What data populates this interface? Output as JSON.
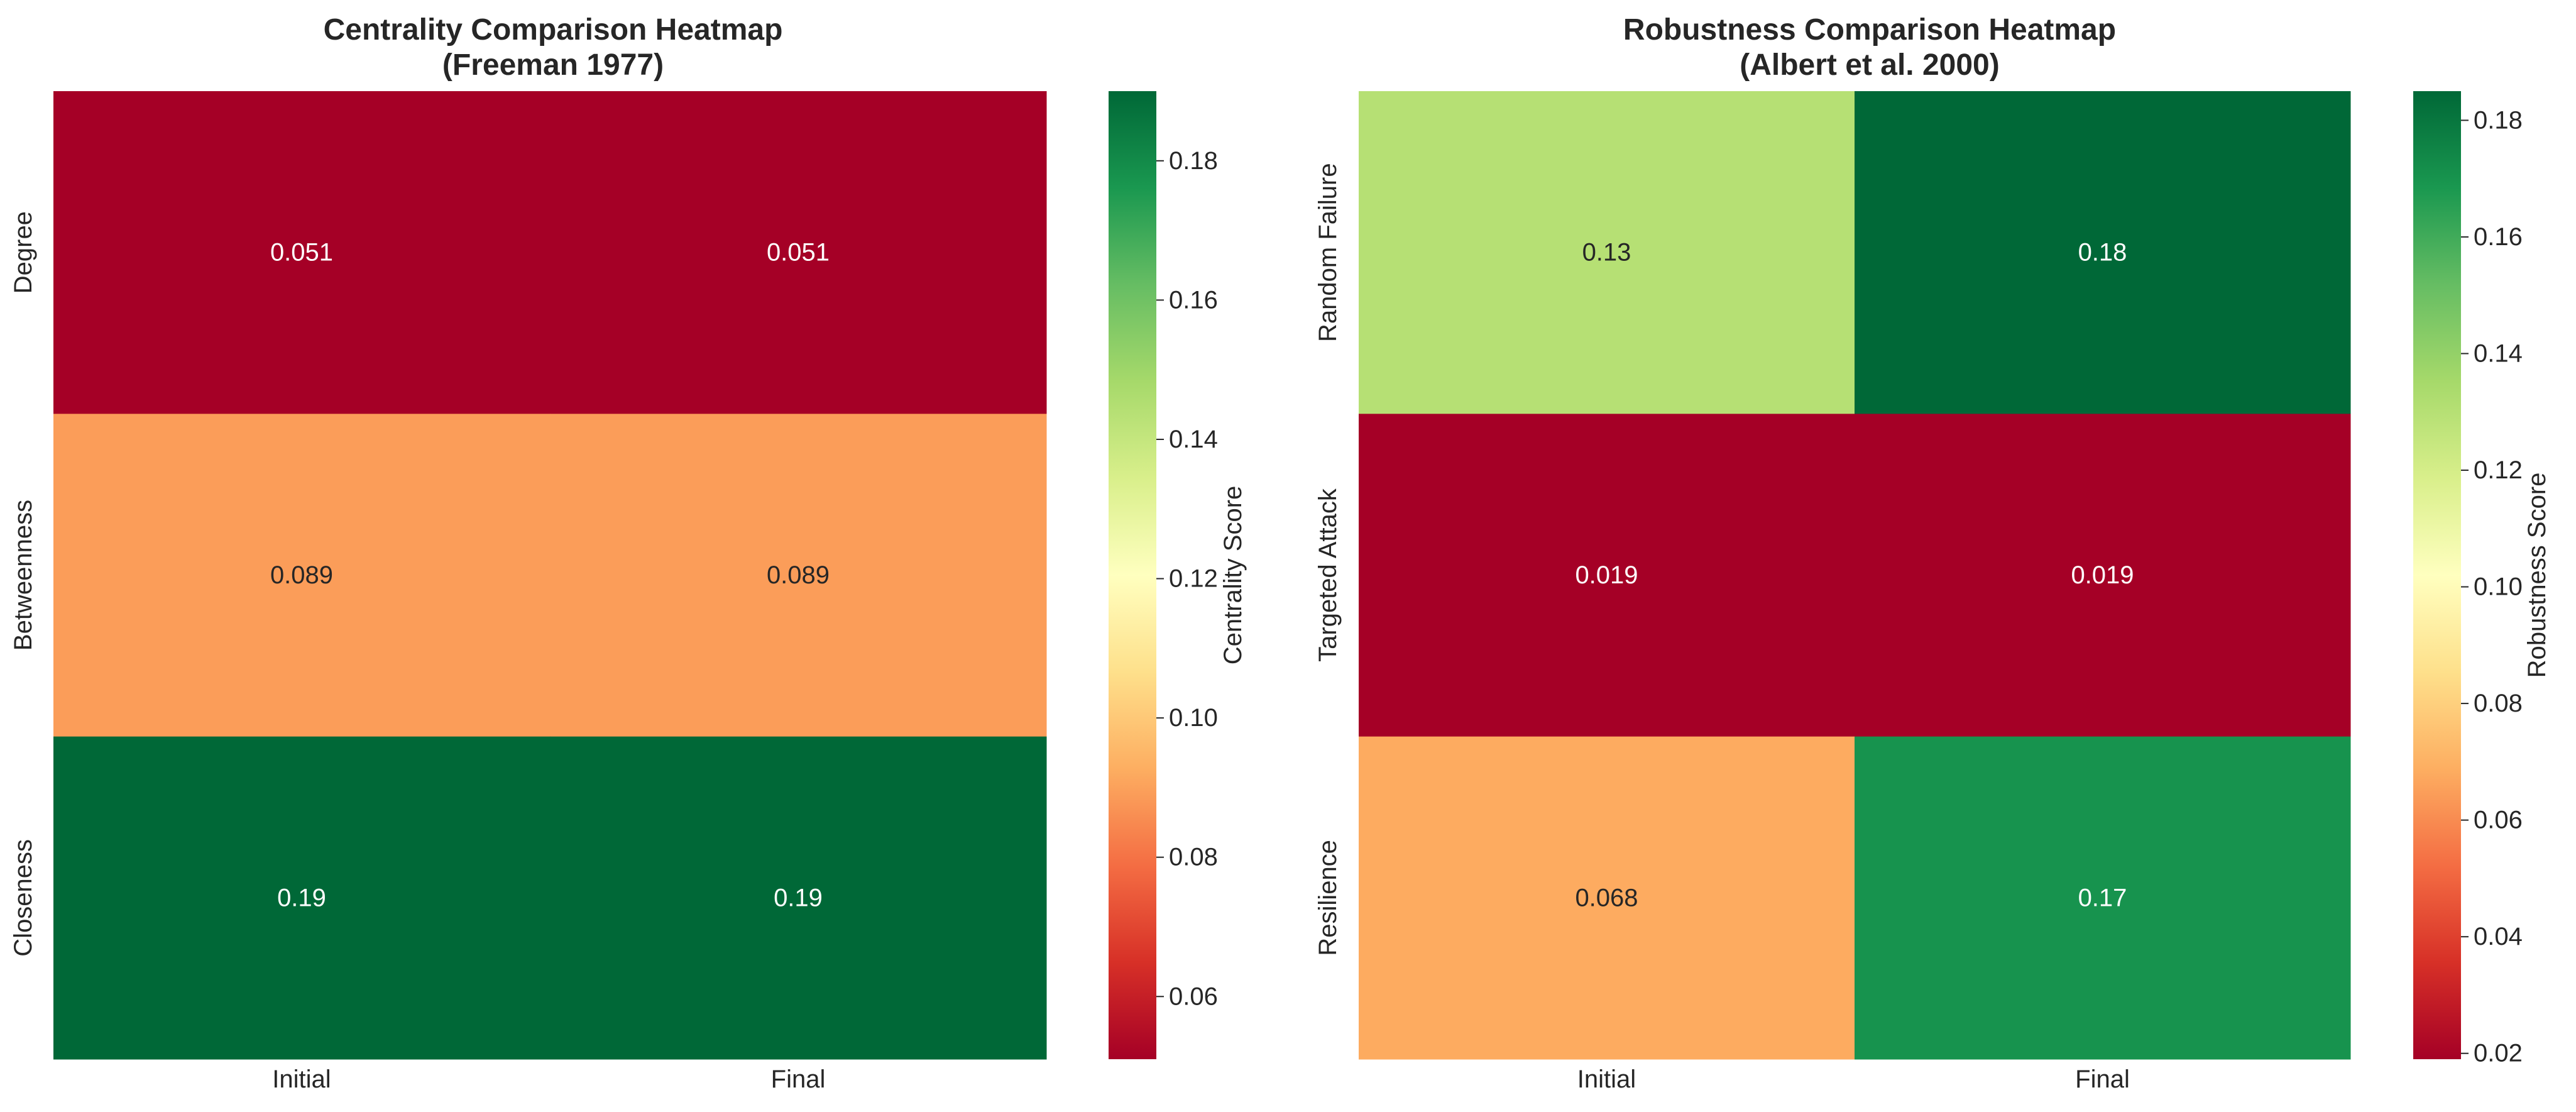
{
  "chart_data": [
    {
      "type": "heatmap",
      "title_line1": "Centrality Comparison Heatmap",
      "title_line2": "(Freeman 1977)",
      "x_categories": [
        "Initial",
        "Final"
      ],
      "y_categories": [
        "Degree",
        "Betweenness",
        "Closeness"
      ],
      "values": [
        [
          0.051,
          0.051
        ],
        [
          0.089,
          0.089
        ],
        [
          0.19,
          0.19
        ]
      ],
      "value_labels": [
        [
          "0.051",
          "0.051"
        ],
        [
          "0.089",
          "0.089"
        ],
        [
          "0.19",
          "0.19"
        ]
      ],
      "colorbar_label": "Centrality Score",
      "colorbar_range": [
        0.051,
        0.19
      ],
      "colorbar_ticks": [
        0.06,
        0.08,
        0.1,
        0.12,
        0.14,
        0.16,
        0.18
      ],
      "colorbar_tick_labels": [
        "0.06",
        "0.08",
        "0.10",
        "0.12",
        "0.14",
        "0.16",
        "0.18"
      ],
      "colormap": "RdYlGn"
    },
    {
      "type": "heatmap",
      "title_line1": "Robustness Comparison Heatmap",
      "title_line2": "(Albert et al. 2000)",
      "x_categories": [
        "Initial",
        "Final"
      ],
      "y_categories": [
        "Random Failure",
        "Targeted Attack",
        "Resilience"
      ],
      "values": [
        [
          0.13,
          0.185
        ],
        [
          0.019,
          0.019
        ],
        [
          0.068,
          0.17
        ]
      ],
      "value_labels": [
        [
          "0.13",
          "0.18"
        ],
        [
          "0.019",
          "0.019"
        ],
        [
          "0.068",
          "0.17"
        ]
      ],
      "colorbar_label": "Robustness Score",
      "colorbar_range": [
        0.019,
        0.185
      ],
      "colorbar_ticks": [
        0.02,
        0.04,
        0.06,
        0.08,
        0.1,
        0.12,
        0.14,
        0.16,
        0.18
      ],
      "colorbar_tick_labels": [
        "0.02",
        "0.04",
        "0.06",
        "0.08",
        "0.10",
        "0.12",
        "0.14",
        "0.16",
        "0.18"
      ],
      "colormap": "RdYlGn"
    }
  ]
}
